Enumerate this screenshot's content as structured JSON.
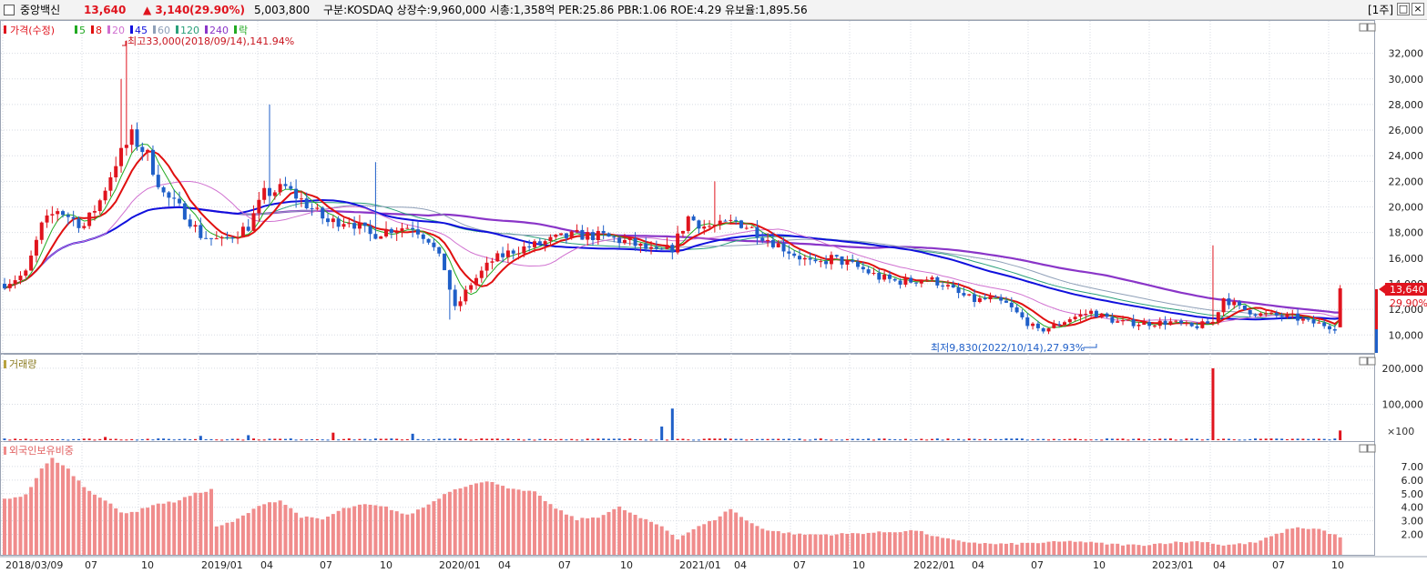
{
  "header": {
    "stock_name": "중앙백신",
    "price": "13,640",
    "change": "▲ 3,140",
    "change_pct": "(29.90%)",
    "volume": "5,003,800",
    "info": "구분:KOSDAQ 상장수:9,960,000 시총:1,358억 PER:25.86 PBR:1.06 ROE:4.29 유보율:1,895.56",
    "period": "[1주]",
    "btn_restore": "□",
    "btn_close": "×"
  },
  "legend": {
    "price_label": "가격(수정)",
    "ma_items": [
      {
        "label": "5",
        "color": "#22aa22"
      },
      {
        "label": "8",
        "color": "#e01010"
      },
      {
        "label": "20",
        "color": "#d070d0"
      },
      {
        "label": "45",
        "color": "#1010dd"
      },
      {
        "label": "60",
        "color": "#8fa0b8"
      },
      {
        "label": "120",
        "color": "#2aa07a"
      },
      {
        "label": "240",
        "color": "#8a35c8"
      },
      {
        "label": "락",
        "color": "#22aa22"
      }
    ],
    "volume_label": "거래량",
    "foreign_label": "외국인보유비중"
  },
  "annotations": {
    "high": "최고33,000(2018/09/14),141.94%",
    "low": "최저9,830(2022/10/14),27.93%",
    "current_price": "13,640",
    "current_pct": "29.90%",
    "volume_unit": "×100"
  },
  "colors": {
    "up": "#e0141e",
    "down": "#1f5fc8",
    "foreign_bar": "#f08c8c",
    "grid": "#d7dbe3"
  },
  "chart_data": {
    "type": "candlestick",
    "x_axis_labels": [
      "2018/03/09",
      "07",
      "10",
      "2019/01",
      "04",
      "07",
      "10",
      "2020/01",
      "04",
      "07",
      "10",
      "2021/01",
      "04",
      "07",
      "10",
      "2022/01",
      "04",
      "07",
      "10",
      "2023/01",
      "04",
      "07",
      "10"
    ],
    "price_axis": {
      "ticks": [
        "10,000",
        "12,000",
        "14,000",
        "16,000",
        "18,000",
        "20,000",
        "22,000",
        "24,000",
        "26,000",
        "28,000",
        "30,000",
        "32,000"
      ],
      "range": [
        8600,
        34600
      ]
    },
    "volume_axis": {
      "ticks": [
        "×100",
        "100,000",
        "200,000"
      ],
      "range": [
        0,
        225000
      ]
    },
    "foreign_axis": {
      "ticks": [
        "2.00",
        "3.00",
        "4.00",
        "5.00",
        "6.00",
        "7.00"
      ],
      "range": [
        0.5,
        8.2
      ]
    },
    "anchors": [
      [
        0,
        14000
      ],
      [
        4,
        14800
      ],
      [
        7,
        18500
      ],
      [
        10,
        19800
      ],
      [
        15,
        18500
      ],
      [
        18,
        20500
      ],
      [
        21,
        23500
      ],
      [
        24,
        25500
      ],
      [
        27,
        24000
      ],
      [
        30,
        21000
      ],
      [
        34,
        19500
      ],
      [
        37,
        17800
      ],
      [
        41,
        17300
      ],
      [
        46,
        18500
      ],
      [
        49,
        21000
      ],
      [
        53,
        21500
      ],
      [
        57,
        20200
      ],
      [
        61,
        18800
      ],
      [
        65,
        19000
      ],
      [
        69,
        17800
      ],
      [
        73,
        18300
      ],
      [
        77,
        18500
      ],
      [
        80,
        17500
      ],
      [
        83,
        15200
      ],
      [
        85,
        12000
      ],
      [
        88,
        14000
      ],
      [
        92,
        15800
      ],
      [
        96,
        16600
      ],
      [
        100,
        17000
      ],
      [
        104,
        17500
      ],
      [
        108,
        17800
      ],
      [
        113,
        17700
      ],
      [
        118,
        17200
      ],
      [
        123,
        16400
      ],
      [
        126,
        16800
      ],
      [
        129,
        19200
      ],
      [
        132,
        18500
      ],
      [
        135,
        18500
      ],
      [
        138,
        18900
      ],
      [
        141,
        18300
      ],
      [
        144,
        17500
      ],
      [
        147,
        16800
      ],
      [
        150,
        16100
      ],
      [
        153,
        15400
      ],
      [
        156,
        16000
      ],
      [
        159,
        15600
      ],
      [
        162,
        15100
      ],
      [
        165,
        14500
      ],
      [
        168,
        14200
      ],
      [
        171,
        14200
      ],
      [
        174,
        14400
      ],
      [
        177,
        14000
      ],
      [
        180,
        13200
      ],
      [
        183,
        12700
      ],
      [
        186,
        12800
      ],
      [
        189,
        12400
      ],
      [
        192,
        11300
      ],
      [
        195,
        10300
      ],
      [
        198,
        10700
      ],
      [
        201,
        11300
      ],
      [
        205,
        11800
      ],
      [
        210,
        11000
      ],
      [
        215,
        10900
      ],
      [
        220,
        11000
      ],
      [
        224,
        10600
      ],
      [
        228,
        11000
      ],
      [
        230,
        12900
      ],
      [
        233,
        12100
      ],
      [
        237,
        11600
      ],
      [
        240,
        11500
      ],
      [
        243,
        11400
      ],
      [
        246,
        11000
      ],
      [
        249,
        10800
      ],
      [
        252,
        10500
      ]
    ],
    "last_candle": {
      "open": 10600,
      "high": 13900,
      "low": 10600,
      "close": 13640
    },
    "volume_spikes": [
      {
        "week": 19,
        "value": 9000
      },
      {
        "week": 37,
        "value": 12000
      },
      {
        "week": 46,
        "value": 14000
      },
      {
        "week": 62,
        "value": 21000
      },
      {
        "week": 77,
        "value": 18000
      },
      {
        "week": 124,
        "value": 38000
      },
      {
        "week": 126,
        "value": 88000
      },
      {
        "week": 228,
        "value": 200000
      },
      {
        "week": 252,
        "value": 27000
      }
    ],
    "foreign_anchors": [
      [
        0,
        4.6
      ],
      [
        4,
        4.9
      ],
      [
        7,
        6.8
      ],
      [
        9,
        7.6
      ],
      [
        12,
        6.8
      ],
      [
        15,
        5.5
      ],
      [
        19,
        4.5
      ],
      [
        22,
        3.6
      ],
      [
        25,
        3.7
      ],
      [
        28,
        4.2
      ],
      [
        32,
        4.4
      ],
      [
        36,
        5.0
      ],
      [
        39,
        5.3
      ],
      [
        40,
        2.6
      ],
      [
        43,
        2.9
      ],
      [
        46,
        3.6
      ],
      [
        49,
        4.3
      ],
      [
        52,
        4.5
      ],
      [
        56,
        3.3
      ],
      [
        60,
        3.1
      ],
      [
        64,
        3.9
      ],
      [
        68,
        4.2
      ],
      [
        72,
        4.0
      ],
      [
        76,
        3.4
      ],
      [
        80,
        4.2
      ],
      [
        84,
        5.2
      ],
      [
        88,
        5.7
      ],
      [
        92,
        5.9
      ],
      [
        96,
        5.3
      ],
      [
        100,
        5.1
      ],
      [
        104,
        3.9
      ],
      [
        108,
        3.1
      ],
      [
        112,
        3.3
      ],
      [
        116,
        4.0
      ],
      [
        120,
        3.2
      ],
      [
        124,
        2.6
      ],
      [
        127,
        1.7
      ],
      [
        130,
        2.4
      ],
      [
        134,
        3.1
      ],
      [
        137,
        3.9
      ],
      [
        140,
        3.0
      ],
      [
        144,
        2.3
      ],
      [
        150,
        2.0
      ],
      [
        156,
        2.0
      ],
      [
        162,
        2.1
      ],
      [
        168,
        2.2
      ],
      [
        172,
        2.3
      ],
      [
        176,
        1.8
      ],
      [
        180,
        1.5
      ],
      [
        186,
        1.3
      ],
      [
        190,
        1.3
      ],
      [
        196,
        1.4
      ],
      [
        202,
        1.5
      ],
      [
        208,
        1.3
      ],
      [
        214,
        1.2
      ],
      [
        220,
        1.4
      ],
      [
        226,
        1.5
      ],
      [
        230,
        1.2
      ],
      [
        236,
        1.4
      ],
      [
        240,
        2.0
      ],
      [
        243,
        2.5
      ],
      [
        248,
        2.4
      ],
      [
        252,
        1.8
      ]
    ],
    "high": {
      "value": 33000,
      "date": "2018/09/14"
    },
    "low": {
      "value": 9830,
      "date": "2022/10/14"
    }
  }
}
